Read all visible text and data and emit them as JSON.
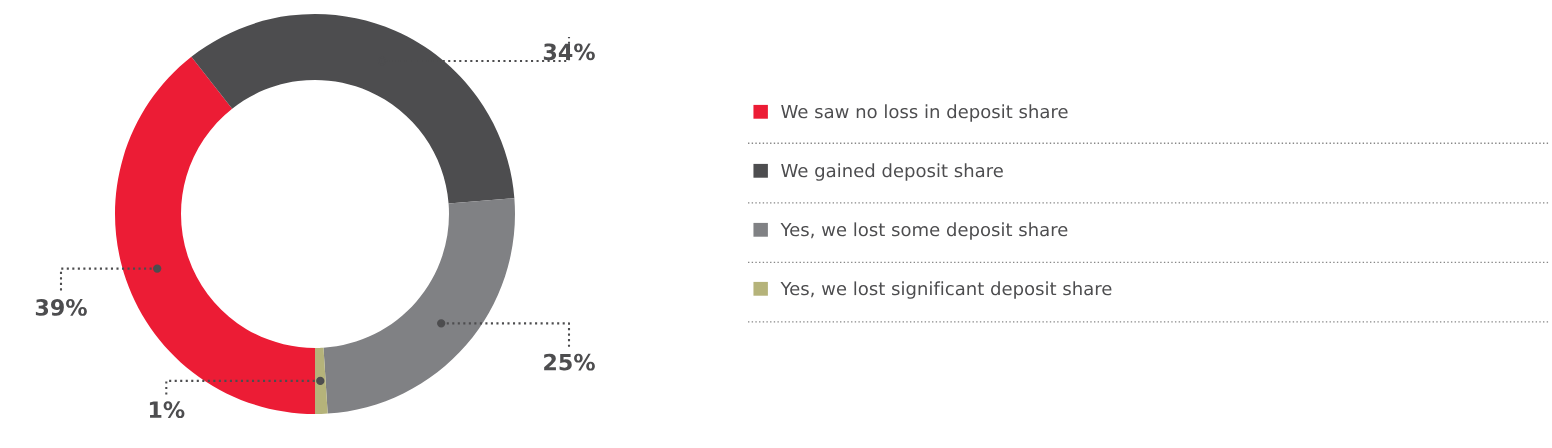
{
  "chart_data": {
    "type": "donut",
    "categories": [
      "We saw no loss in deposit share",
      "We gained deposit share",
      "Yes, we lost some deposit share",
      "Yes, we lost significant deposit share"
    ],
    "values": [
      39,
      34,
      25,
      1
    ],
    "colors": [
      "#ec1c35",
      "#4d4d4f",
      "#808184",
      "#b5b37a"
    ],
    "value_labels": [
      "39%",
      "34%",
      "25%",
      "1%"
    ],
    "legend": "right"
  }
}
